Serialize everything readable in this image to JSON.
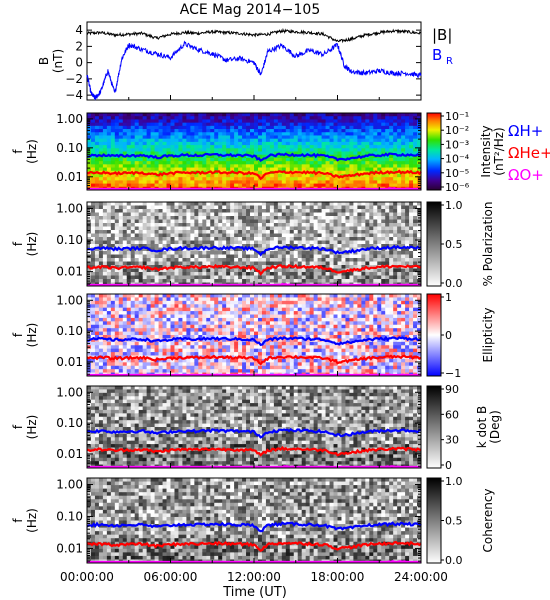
{
  "title": "ACE Mag 2014−105",
  "xlabel": "Time (UT)",
  "x_ticks": [
    "00:00:00",
    "06:00:00",
    "12:00:00",
    "18:00:00",
    "24:00:00"
  ],
  "colors": {
    "total_field": "#000000",
    "br": "#0000ff",
    "H": "#0000ff",
    "He": "#ff0000",
    "O": "#ff00ff"
  },
  "chart_data": [
    {
      "type": "line",
      "ylabel": "B",
      "yunit": "(nT)",
      "ylim": [
        -4.6,
        5
      ],
      "y_ticks": [
        "4",
        "2",
        "0",
        "−2",
        "−4"
      ],
      "x_range_hours": [
        0,
        24
      ],
      "series": [
        {
          "name": "|B|",
          "x": [
            0,
            1,
            2,
            3,
            4,
            5,
            6,
            7,
            8,
            9,
            10,
            11,
            12,
            13,
            14,
            15,
            16,
            17,
            18,
            19,
            20,
            21,
            22,
            23,
            24
          ],
          "values": [
            3.6,
            3.7,
            3.4,
            3.5,
            3.6,
            3.0,
            3.5,
            3.7,
            3.6,
            3.8,
            3.7,
            3.6,
            3.4,
            3.5,
            3.9,
            3.8,
            3.7,
            3.5,
            2.6,
            2.9,
            3.4,
            3.7,
            3.9,
            3.8,
            3.6
          ]
        },
        {
          "name": "B_R",
          "x": [
            0,
            0.3,
            0.6,
            1,
            1.5,
            2,
            2.5,
            3,
            4,
            5,
            6,
            7,
            8,
            9,
            10,
            11,
            12,
            12.5,
            13,
            14,
            15,
            16,
            17,
            18,
            18.5,
            19,
            20,
            21,
            22,
            23,
            24
          ],
          "values": [
            -1.5,
            -3.8,
            -4.4,
            -3.5,
            -1.0,
            -3.8,
            0.5,
            2.2,
            1.6,
            1.1,
            0.6,
            2.3,
            1.6,
            1.1,
            0.3,
            0.5,
            0.0,
            -1.5,
            1.4,
            2.1,
            0.8,
            1.5,
            1.0,
            2.2,
            -0.4,
            -1.1,
            -1.3,
            -1.0,
            -1.3,
            -1.3,
            -1.6
          ]
        }
      ]
    },
    {
      "type": "heatmap",
      "quantity": "Intensity",
      "ylabel": "f",
      "yunit": "(Hz)",
      "colorbar_label": "Intensity",
      "colorbar_unit": "(nT²/Hz)",
      "colorbar_ticks": [
        "10⁻¹",
        "10⁻²",
        "10⁻³",
        "10⁻⁴",
        "10⁻⁵",
        "10⁻⁶"
      ],
      "legend": [
        "ΩH+",
        "ΩHe+",
        "ΩO+"
      ]
    },
    {
      "type": "heatmap",
      "quantity": "% Polarization",
      "ylabel": "f",
      "yunit": "(Hz)",
      "colorbar_label": "% Polarization",
      "colorbar_ticks": [
        "1.0",
        "0.5",
        "0.0"
      ]
    },
    {
      "type": "heatmap",
      "quantity": "Ellipticity",
      "ylabel": "f",
      "yunit": "(Hz)",
      "colorbar_label": "Ellipticity",
      "colorbar_ticks": [
        "1",
        "0",
        "−1"
      ]
    },
    {
      "type": "heatmap",
      "quantity": "k dot B",
      "ylabel": "f",
      "yunit": "(Hz)",
      "colorbar_label": "k dot B",
      "colorbar_unit": "(Deg)",
      "colorbar_ticks": [
        "90",
        "60",
        "30",
        "0"
      ]
    },
    {
      "type": "heatmap",
      "quantity": "Coherency",
      "ylabel": "f",
      "yunit": "(Hz)",
      "colorbar_label": "Coherency",
      "colorbar_ticks": [
        "1.0",
        "0.5",
        "0.0"
      ]
    }
  ],
  "freq_axis": {
    "y_ticks": [
      "1.00",
      "0.10",
      "0.01"
    ],
    "ylim_hz": [
      0.0035,
      1.6
    ]
  },
  "gyrofrequency_lines": {
    "x_hours": [
      0,
      1,
      2,
      3,
      4,
      5,
      6,
      7,
      8,
      9,
      10,
      11,
      12,
      12.5,
      13,
      14,
      15,
      16,
      17,
      18,
      19,
      20,
      21,
      22,
      23,
      24
    ],
    "H_plus_hz": [
      0.053,
      0.056,
      0.052,
      0.054,
      0.055,
      0.047,
      0.053,
      0.056,
      0.055,
      0.058,
      0.056,
      0.055,
      0.052,
      0.035,
      0.053,
      0.059,
      0.058,
      0.056,
      0.053,
      0.04,
      0.044,
      0.052,
      0.056,
      0.059,
      0.058,
      0.055
    ],
    "He_plus_hz": [
      0.0133,
      0.014,
      0.013,
      0.0135,
      0.0138,
      0.0118,
      0.0133,
      0.014,
      0.0138,
      0.0145,
      0.014,
      0.0138,
      0.013,
      0.0088,
      0.0133,
      0.0148,
      0.0145,
      0.014,
      0.0133,
      0.01,
      0.011,
      0.013,
      0.014,
      0.0148,
      0.0145,
      0.0138
    ],
    "O_plus_hz": [
      0.0033,
      0.0035,
      0.0033,
      0.0034,
      0.0035,
      0.003,
      0.0033,
      0.0035,
      0.0034,
      0.0036,
      0.0035,
      0.0034,
      0.0033,
      0.0022,
      0.0033,
      0.0037,
      0.0036,
      0.0035,
      0.0033,
      0.0025,
      0.0028,
      0.0033,
      0.0035,
      0.0037,
      0.0036,
      0.0034
    ]
  },
  "legend_mag": [
    "|B|",
    "B",
    "R"
  ]
}
